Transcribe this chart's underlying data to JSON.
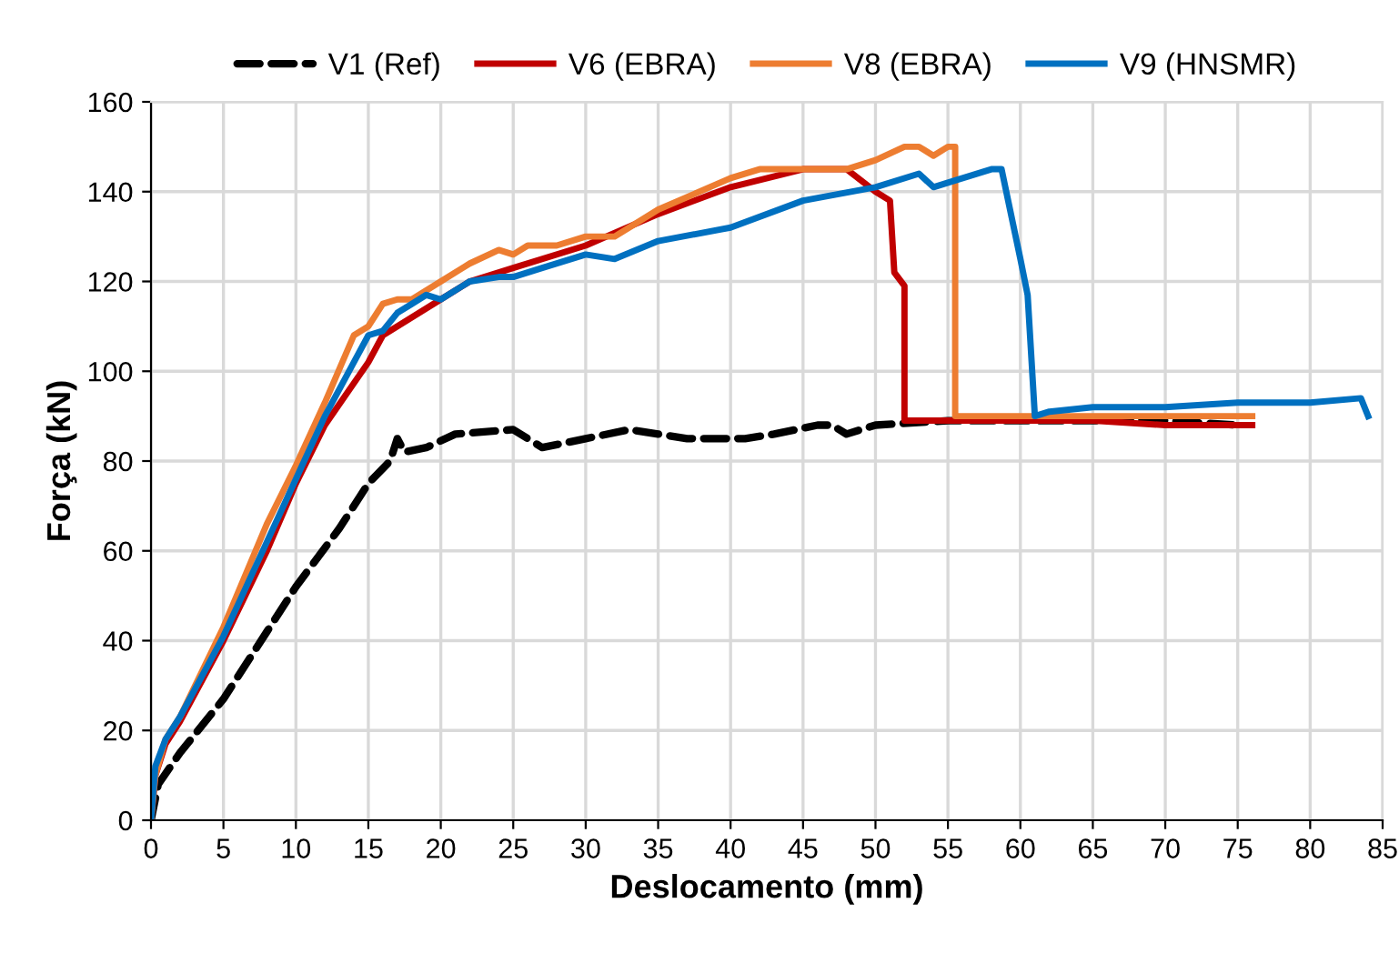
{
  "chart_data": {
    "type": "line",
    "xlabel": "Deslocamento (mm)",
    "ylabel": "Força (kN)",
    "xlim": [
      0,
      85
    ],
    "xticks": [
      0,
      5,
      10,
      15,
      20,
      25,
      30,
      35,
      40,
      45,
      50,
      55,
      60,
      65,
      70,
      75,
      80,
      85
    ],
    "ylim": [
      0,
      160
    ],
    "yticks": [
      0,
      20,
      40,
      60,
      80,
      100,
      120,
      140,
      160
    ],
    "grid": true,
    "legend": "top",
    "marker": "none",
    "series": [
      {
        "name": "V1 (Ref)",
        "color": "#000000",
        "line_style": "dashed",
        "x": [
          0,
          0.5,
          2,
          5,
          8,
          10,
          13,
          15,
          16.5,
          17,
          17.5,
          19,
          21,
          25,
          27,
          30,
          33,
          35,
          37,
          41,
          43,
          46,
          47,
          48,
          50,
          55,
          60,
          65,
          70,
          75
        ],
        "values": [
          0,
          8,
          15,
          27,
          42,
          52,
          65,
          75,
          80,
          85,
          82,
          83,
          86,
          87,
          83,
          85,
          87,
          86,
          85,
          85,
          86,
          88,
          88,
          86,
          88,
          89,
          89,
          89,
          89,
          88
        ]
      },
      {
        "name": "V6 (EBRA)",
        "color": "#c00000",
        "line_style": "solid",
        "x": [
          0,
          0.3,
          1,
          2,
          5,
          8,
          10,
          12,
          15,
          16,
          18,
          20,
          22,
          25,
          30,
          35,
          40,
          45,
          48,
          50,
          51,
          51.3,
          52,
          52,
          55,
          60,
          65,
          70,
          76
        ],
        "values": [
          0,
          10,
          17,
          22,
          40,
          60,
          75,
          88,
          102,
          108,
          112,
          116,
          120,
          123,
          128,
          135,
          141,
          145,
          145,
          140,
          138,
          122,
          119,
          89,
          89,
          89,
          89,
          88,
          88
        ]
      },
      {
        "name": "V8 (EBRA)",
        "color": "#ed7d31",
        "line_style": "solid",
        "x": [
          0,
          0.3,
          1,
          2,
          5,
          8,
          10,
          12,
          14,
          15,
          16,
          17,
          18,
          20,
          22,
          24,
          25,
          26,
          28,
          30,
          32,
          35,
          40,
          42,
          45,
          48,
          50,
          52,
          53,
          54,
          55,
          55.5,
          55.5,
          60,
          65,
          70,
          76
        ],
        "values": [
          0,
          10,
          18,
          23,
          43,
          66,
          79,
          93,
          108,
          110,
          115,
          116,
          116,
          120,
          124,
          127,
          126,
          128,
          128,
          130,
          130,
          136,
          143,
          145,
          145,
          145,
          147,
          150,
          150,
          148,
          150,
          150,
          90,
          90,
          90,
          90,
          90
        ]
      },
      {
        "name": "V9 (HNSMR)",
        "color": "#0070c0",
        "line_style": "solid",
        "x": [
          0,
          0.3,
          1,
          2,
          5,
          8,
          10,
          12,
          14,
          15,
          16,
          17,
          18,
          19,
          20,
          22,
          24,
          25,
          27,
          30,
          32,
          35,
          40,
          45,
          50,
          53,
          54,
          55,
          58,
          58.7,
          60,
          60.5,
          61,
          62,
          65,
          70,
          75,
          80,
          83.5,
          84
        ],
        "values": [
          0,
          12,
          18,
          23,
          41,
          62,
          76,
          90,
          102,
          108,
          109,
          113,
          115,
          117,
          116,
          120,
          121,
          121,
          123,
          126,
          125,
          129,
          132,
          138,
          141,
          144,
          141,
          142,
          145,
          145,
          125,
          117,
          90,
          91,
          92,
          92,
          93,
          93,
          94,
          90
        ]
      }
    ]
  }
}
